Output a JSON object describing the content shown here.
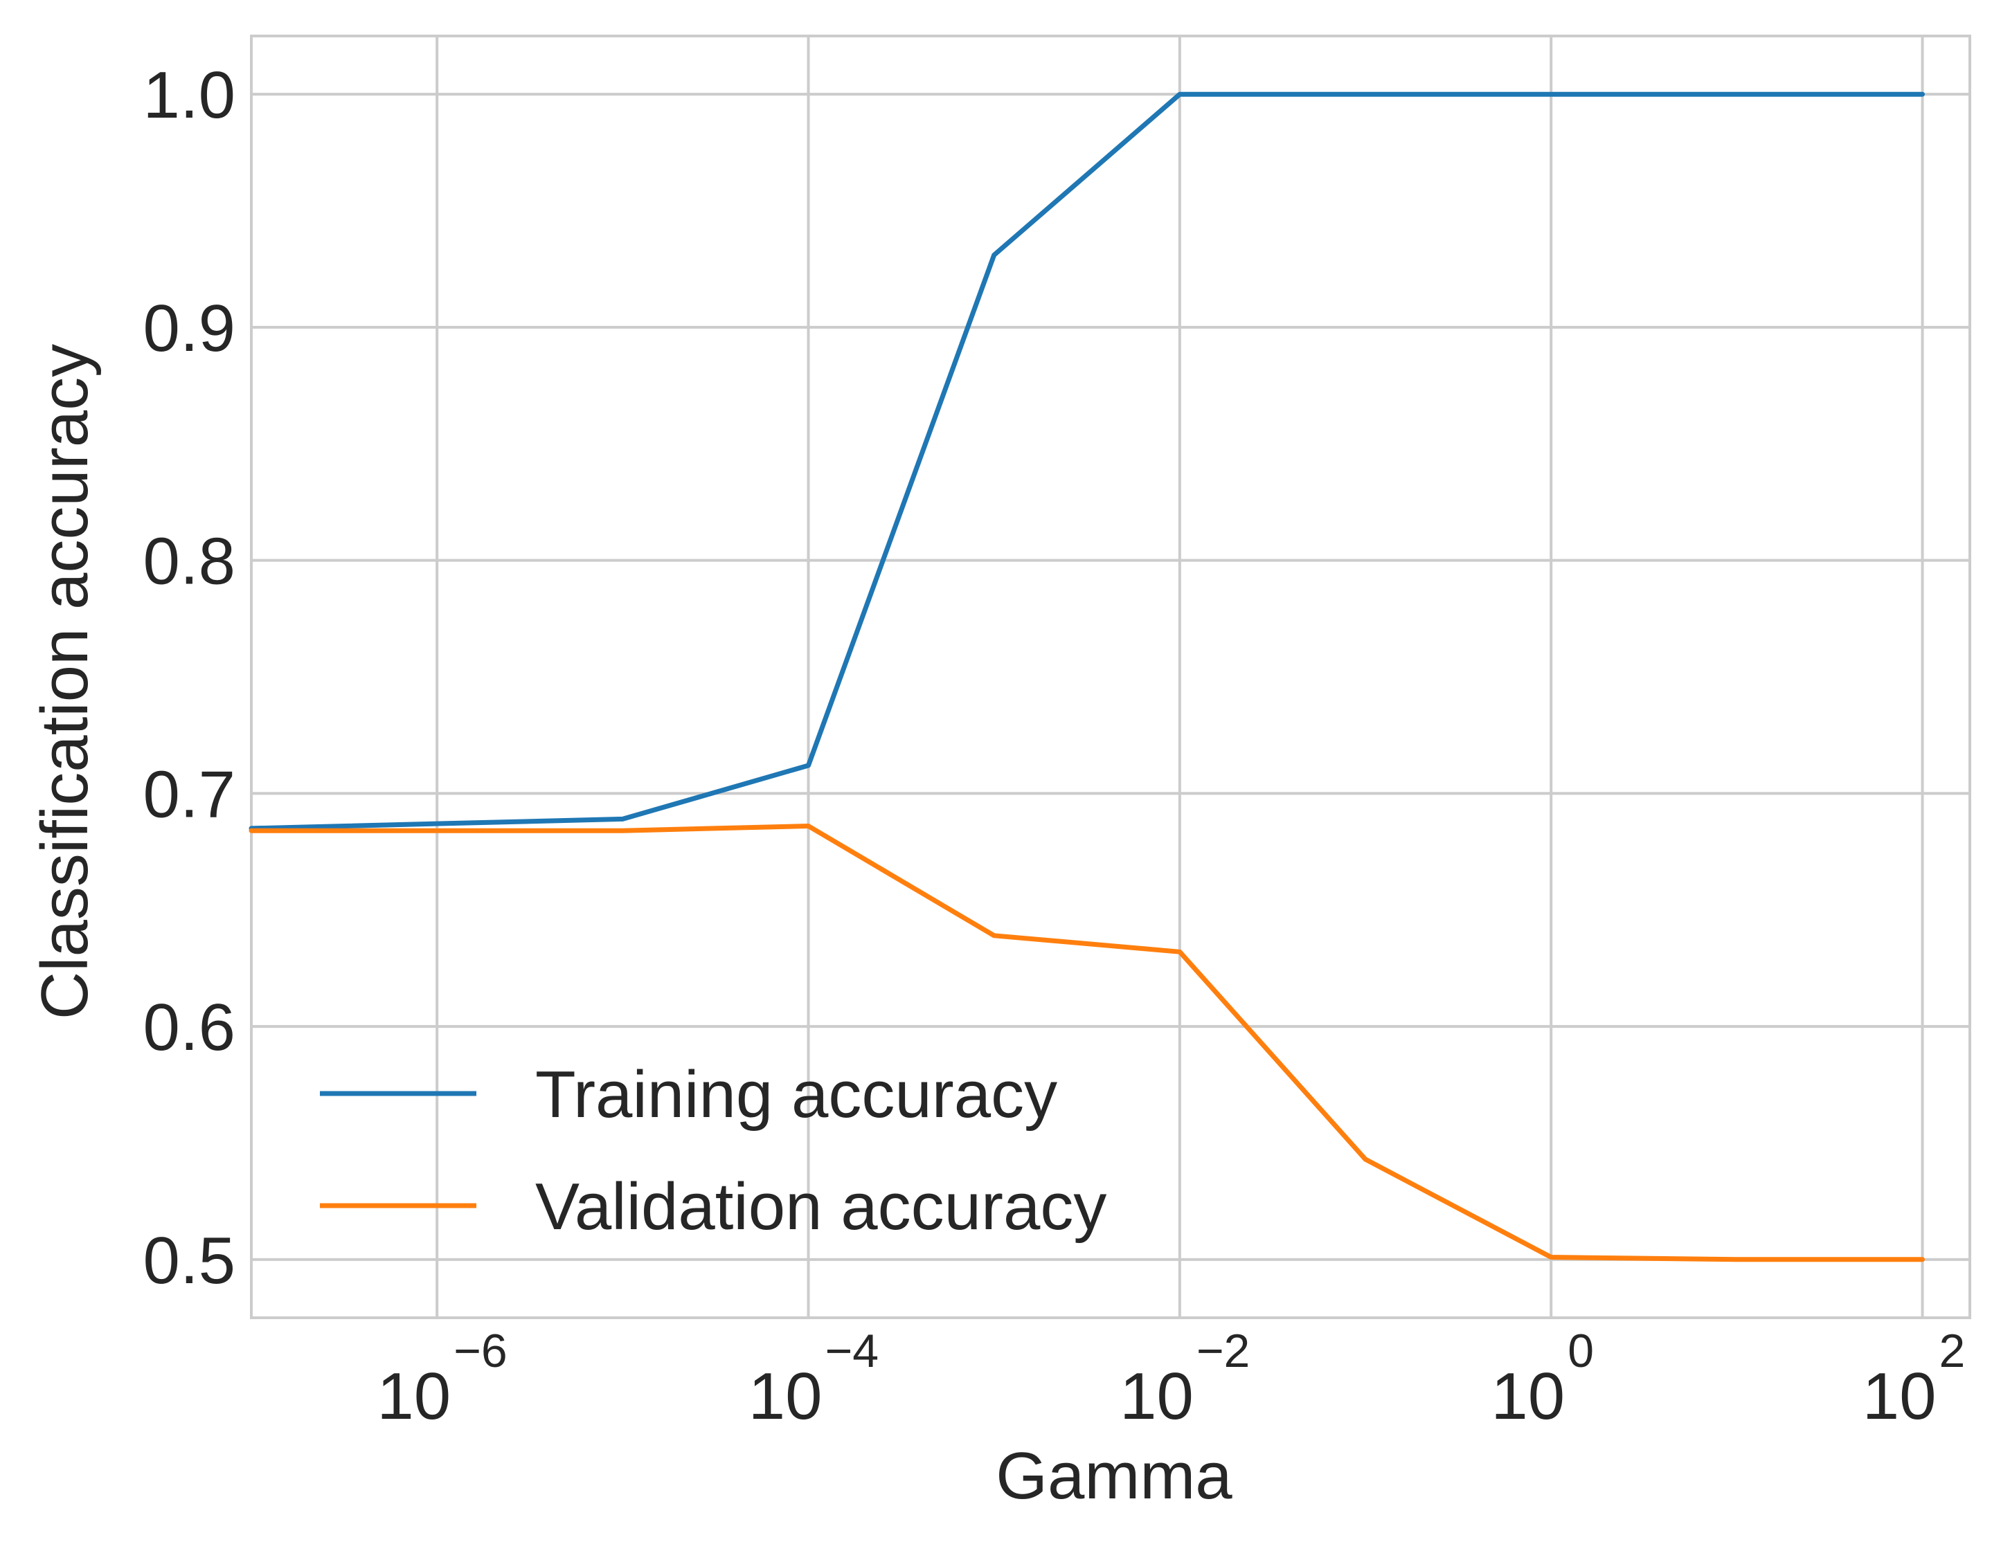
{
  "chart_data": {
    "type": "line",
    "xlabel": "Gamma",
    "ylabel": "Classification accuracy",
    "xscale": "log",
    "xlim": [
      1e-07,
      180
    ],
    "ylim": [
      0.475,
      1.025
    ],
    "x_ticks": [
      {
        "value": 1e-06,
        "base": "10",
        "exp": "−6"
      },
      {
        "value": 0.0001,
        "base": "10",
        "exp": "−4"
      },
      {
        "value": 0.01,
        "base": "10",
        "exp": "−2"
      },
      {
        "value": 1,
        "base": "10",
        "exp": "0"
      },
      {
        "value": 100,
        "base": "10",
        "exp": "2"
      }
    ],
    "y_ticks": [
      {
        "value": 0.5,
        "label": "0.5"
      },
      {
        "value": 0.6,
        "label": "0.6"
      },
      {
        "value": 0.7,
        "label": "0.7"
      },
      {
        "value": 0.8,
        "label": "0.8"
      },
      {
        "value": 0.9,
        "label": "0.9"
      },
      {
        "value": 1.0,
        "label": "1.0"
      }
    ],
    "grid": true,
    "legend_position": "lower-left",
    "x": [
      1e-07,
      1e-05,
      0.0001,
      0.001,
      0.01,
      0.1,
      1,
      10,
      100
    ],
    "series": [
      {
        "name": "Training accuracy",
        "color": "#1f77b4",
        "values": [
          0.685,
          0.689,
          0.712,
          0.931,
          1.0,
          1.0,
          1.0,
          1.0,
          1.0
        ]
      },
      {
        "name": "Validation accuracy",
        "color": "#ff7f0e",
        "values": [
          0.684,
          0.684,
          0.686,
          0.639,
          0.632,
          0.543,
          0.501,
          0.5,
          0.5
        ]
      }
    ]
  }
}
